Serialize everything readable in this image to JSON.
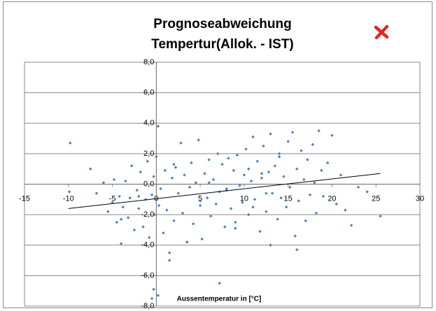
{
  "chart_data": {
    "type": "scatter",
    "title": [
      "Prognoseabweichung",
      "Tempertur(Allok. - IST)"
    ],
    "xlabel": "Aussentemperatur in [°C]",
    "xlim": [
      -15,
      30
    ],
    "xticks": [
      -15,
      -10,
      -5,
      0,
      5,
      10,
      15,
      20,
      25,
      30
    ],
    "ylim": [
      -8,
      8
    ],
    "yticks": [
      {
        "value": -8,
        "label": "-8,0"
      },
      {
        "value": -6,
        "label": "-6,0"
      },
      {
        "value": -4,
        "label": "-4,0"
      },
      {
        "value": -2,
        "label": "-2,0"
      },
      {
        "value": 0,
        "label": "0,0"
      },
      {
        "value": 2,
        "label": "2,0"
      },
      {
        "value": 4,
        "label": "4,0"
      },
      {
        "value": 6,
        "label": "6,0"
      },
      {
        "value": 8,
        "label": "8,0"
      }
    ],
    "grid": true,
    "color": "#4a7ebb",
    "trendline_color": "#000000",
    "x": [
      -9.8,
      -9.9,
      -7.5,
      -6.8,
      -6,
      -5.5,
      -5,
      -4.8,
      -4.5,
      -4.2,
      -4,
      -3.8,
      -3.5,
      -3.2,
      -3,
      -2.8,
      -2.5,
      -2.2,
      -2,
      -1.8,
      -1.5,
      -1.2,
      -1,
      -0.8,
      -0.5,
      -0.3,
      -0.2,
      0,
      0.2,
      0.3,
      0.5,
      0.8,
      1,
      1.2,
      1.5,
      1.8,
      2,
      2.2,
      2.5,
      2.8,
      3,
      3.2,
      3.5,
      3.8,
      4,
      4.2,
      4.5,
      4.8,
      5,
      5.2,
      5.5,
      5.8,
      6,
      6.2,
      6.5,
      6.8,
      7,
      7.2,
      7.5,
      7.8,
      8,
      8.2,
      8.5,
      8.8,
      9,
      9.2,
      9.5,
      9.8,
      10,
      10.2,
      10.5,
      10.8,
      11,
      11.2,
      11.5,
      11.8,
      12,
      12.2,
      12.5,
      12.8,
      13,
      13.2,
      13.5,
      13.8,
      14,
      14.2,
      14.5,
      14.8,
      15,
      15.2,
      15.5,
      15.8,
      16,
      16.2,
      16.5,
      16.8,
      17,
      17.2,
      17.5,
      17.8,
      18,
      18.2,
      18.5,
      18.8,
      19,
      19.5,
      20,
      20.5,
      21,
      21.5,
      22.2,
      23,
      24,
      25.5,
      -0.5,
      -0.3,
      0.2,
      7.2,
      1.5,
      3.5,
      11,
      12,
      13,
      9,
      6,
      14,
      16,
      10.5,
      8,
      5,
      2,
      -2,
      -4,
      12.5
    ],
    "y": [
      2.7,
      -0.5,
      1.0,
      -0.6,
      0.1,
      -1.8,
      -1.2,
      0.3,
      -2.5,
      -0.8,
      -3.9,
      -1.5,
      0.2,
      -2.2,
      -0.9,
      1.2,
      -3.0,
      -0.4,
      -1.6,
      0.8,
      -2.8,
      -1.0,
      1.5,
      -3.5,
      -0.7,
      0.5,
      -2.0,
      1.8,
      3.8,
      -1.4,
      -0.3,
      -3.2,
      0.9,
      -1.7,
      -5.0,
      0.4,
      -2.4,
      1.1,
      -0.6,
      2.7,
      -1.9,
      0.6,
      -3.8,
      -0.2,
      1.4,
      -2.6,
      0.1,
      2.9,
      -1.1,
      -3.6,
      0.7,
      -0.9,
      1.6,
      -2.1,
      0.3,
      -1.3,
      2.0,
      -0.5,
      1.3,
      -2.8,
      -0.4,
      1.7,
      -1.6,
      0.9,
      -2.9,
      1.9,
      -0.1,
      -1.2,
      0.6,
      2.3,
      -2.0,
      0.2,
      3.1,
      -1.0,
      1.5,
      -3.1,
      0.4,
      2.5,
      -1.8,
      0.8,
      3.3,
      -0.6,
      1.2,
      -2.3,
      2.0,
      -0.9,
      0.5,
      -1.5,
      2.8,
      -0.2,
      3.4,
      -3.4,
      1.0,
      -1.1,
      2.2,
      0.3,
      -2.4,
      1.6,
      -0.7,
      2.6,
      0.1,
      -1.9,
      3.5,
      0.9,
      -0.8,
      1.4,
      3.2,
      -1.3,
      0.6,
      -1.7,
      -2.7,
      -0.2,
      -0.5,
      -2.1,
      -7.5,
      -6.9,
      -7.3,
      -6.5,
      -4.5,
      -3.8,
      -1.5,
      0.7,
      -4.0,
      -2.5,
      0.1,
      1.8,
      -4.3,
      1.0,
      -0.3,
      -1.4,
      1.3,
      -0.8,
      -2.3,
      -0.6
    ],
    "trendline": {
      "x": [
        -10,
        25.5
      ],
      "y": [
        -1.6,
        0.7
      ]
    }
  }
}
